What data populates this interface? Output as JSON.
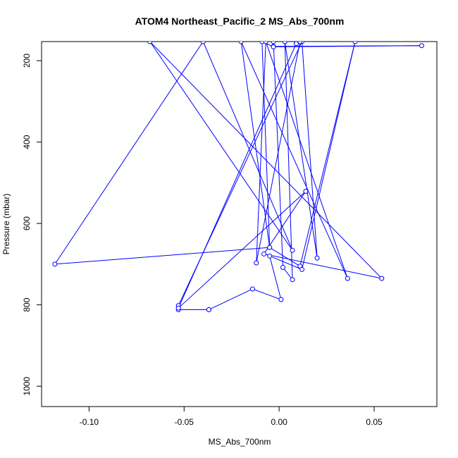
{
  "chart_data": {
    "type": "line",
    "title": "ATOM4 Northeast_Pacific_2 MS_Abs_700nm",
    "xlabel": "MS_Abs_700nm",
    "ylabel": "Pressure (mbar)",
    "xlim": [
      -0.125,
      0.083
    ],
    "ylim": [
      1050,
      153
    ],
    "y_reversed": true,
    "grid": false,
    "x_ticks": [
      -0.1,
      -0.05,
      0.0,
      0.05
    ],
    "x_tick_labels": [
      "-0.10",
      "-0.05",
      "0.00",
      "0.05"
    ],
    "y_ticks": [
      200,
      400,
      600,
      800,
      1000
    ],
    "y_tick_labels": [
      "200",
      "400",
      "600",
      "800",
      "1000"
    ],
    "series": [
      {
        "color": "#0000ff",
        "marker": "open-circle",
        "points": [
          {
            "x": -0.037,
            "y": 812
          },
          {
            "x": -0.053,
            "y": 812
          },
          {
            "x": -0.053,
            "y": 802
          },
          {
            "x": 0.012,
            "y": 153
          },
          {
            "x": 0.02,
            "y": 685
          },
          {
            "x": 0.003,
            "y": 153
          },
          {
            "x": 0.007,
            "y": 738
          },
          {
            "x": 0.002,
            "y": 708
          },
          {
            "x": -0.003,
            "y": 153
          },
          {
            "x": -0.003,
            "y": 165
          },
          {
            "x": 0.075,
            "y": 163
          },
          {
            "x": -0.003,
            "y": 166
          },
          {
            "x": -0.009,
            "y": 153
          },
          {
            "x": -0.005,
            "y": 659
          },
          {
            "x": -0.02,
            "y": 153
          },
          {
            "x": 0.036,
            "y": 735
          },
          {
            "x": -0.007,
            "y": 153
          },
          {
            "x": -0.012,
            "y": 697
          },
          {
            "x": 0.011,
            "y": 153
          },
          {
            "x": 0.009,
            "y": 158
          },
          {
            "x": -0.053,
            "y": 808
          },
          {
            "x": 0.014,
            "y": 521
          },
          {
            "x": -0.008,
            "y": 675
          },
          {
            "x": 0.054,
            "y": 735
          },
          {
            "x": -0.068,
            "y": 153
          },
          {
            "x": 0.007,
            "y": 666
          },
          {
            "x": -0.04,
            "y": 153
          },
          {
            "x": -0.118,
            "y": 700
          },
          {
            "x": -0.005,
            "y": 659
          },
          {
            "x": 0.011,
            "y": 705
          },
          {
            "x": 0.04,
            "y": 153
          },
          {
            "x": 0.012,
            "y": 713
          },
          {
            "x": -0.005,
            "y": 680
          },
          {
            "x": 0.001,
            "y": 787
          },
          {
            "x": -0.014,
            "y": 761
          },
          {
            "x": -0.037,
            "y": 812
          }
        ]
      }
    ]
  }
}
